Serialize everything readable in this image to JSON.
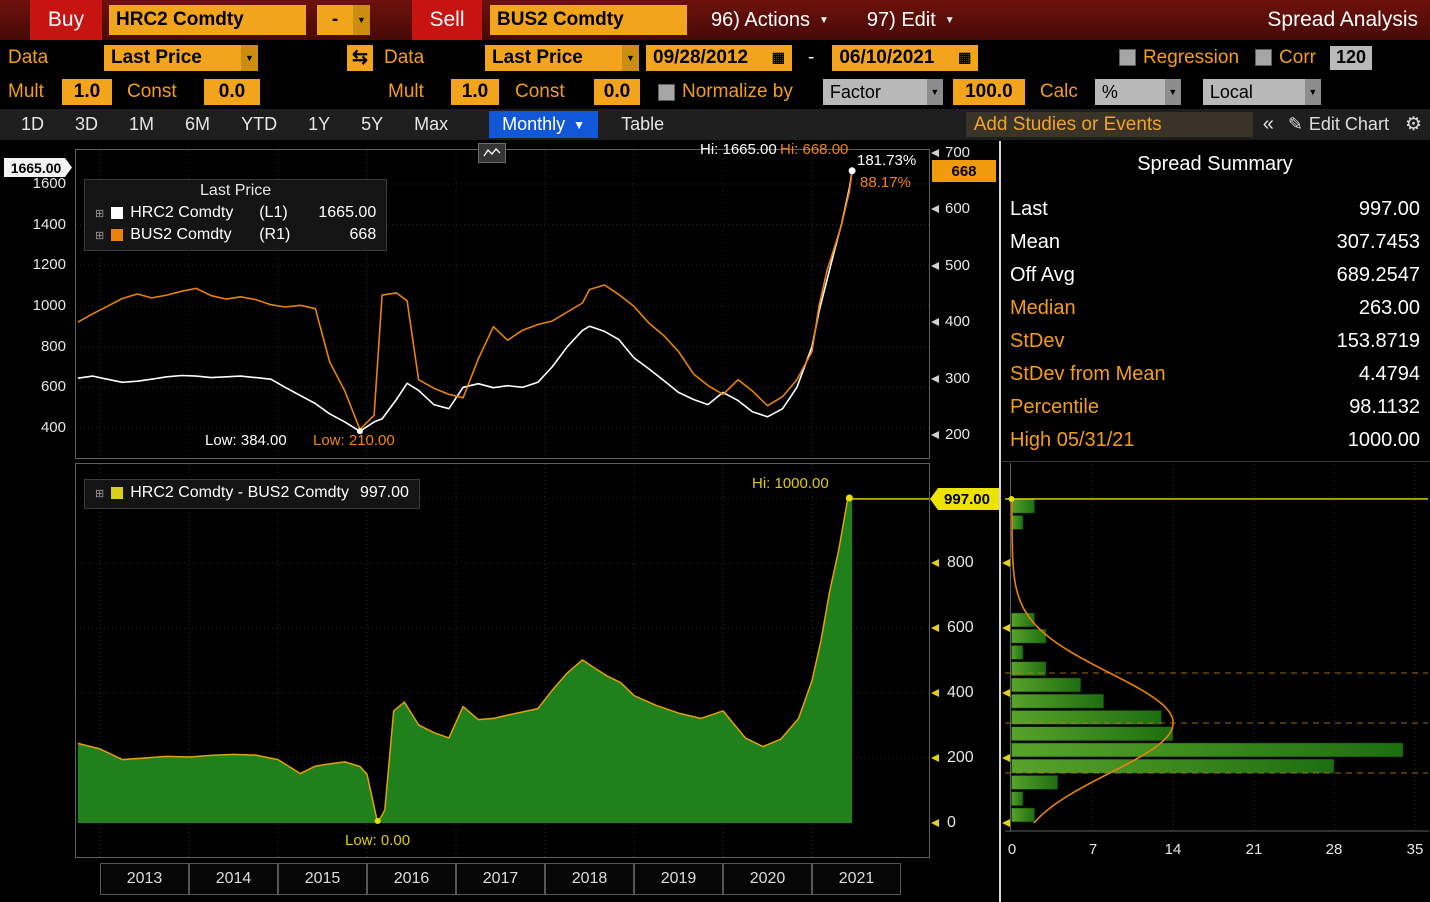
{
  "icons": {
    "chevron_down": "▼",
    "swap_arrows": "⇆",
    "calendar": "▦",
    "collapse": "«",
    "pencil": "✎",
    "gear": "⚙",
    "expand": "⊞"
  },
  "colors": {
    "amber_field": "#f2a51c",
    "amber_text": "#f59d18",
    "red_button": "#c81410",
    "blue_selected": "#1158d8",
    "white_series": "#ffffff",
    "orange_series": "#e8820c",
    "green_fill": "#1f801c",
    "area_outline": "#e2a00e",
    "yellow": "#e3d018",
    "legend_spread_swatch": "#d8cf1a"
  },
  "header": {
    "buy_label": "Buy",
    "buy_ticker": "HRC2 Comdty",
    "pair_separator": "-",
    "sell_label": "Sell",
    "sell_ticker": "BUS2 Comdty",
    "actions_label": "96) Actions",
    "edit_label": "97) Edit",
    "title": "Spread Analysis"
  },
  "controls": {
    "data1_label": "Data",
    "data1_value": "Last Price",
    "data2_label": "Data",
    "data2_value": "Last Price",
    "date_from": "09/28/2012",
    "date_separator": "-",
    "date_to": "06/10/2021",
    "regression_label": "Regression",
    "corr_label": "Corr",
    "corr_value": "120",
    "mult1_label": "Mult",
    "mult1_value": "1.0",
    "const1_label": "Const",
    "const1_value": "0.0",
    "mult2_label": "Mult",
    "mult2_value": "1.0",
    "const2_label": "Const",
    "const2_value": "0.0",
    "normalize_label": "Normalize by",
    "normalize_value": "Factor",
    "normalize_amount": "100.0",
    "calc_label": "Calc",
    "calc_value": "%",
    "currency_value": "Local"
  },
  "toolbar": {
    "ranges": [
      "1D",
      "3D",
      "1M",
      "6M",
      "YTD",
      "1Y",
      "5Y",
      "Max"
    ],
    "period_label": "Monthly",
    "table_label": "Table",
    "studies_placeholder": "Add Studies or Events",
    "edit_chart_label": "Edit Chart"
  },
  "top_chart": {
    "legend_title": "Last Price",
    "legend": [
      {
        "name": "HRC2 Comdty",
        "axis": "(L1)",
        "value": "1665.00",
        "color": "#ffffff"
      },
      {
        "name": "BUS2 Comdty",
        "axis": "(R1)",
        "value": "668",
        "color": "#e8820c"
      }
    ],
    "left_badge": "1665.00",
    "right_badge": "668",
    "left_ticks": [
      1600,
      1400,
      1200,
      1000,
      800,
      600,
      400
    ],
    "right_ticks": [
      700,
      600,
      500,
      400,
      300,
      200
    ],
    "hi_left": "Hi: 1665.00",
    "hi_right": "Hi: 668.00",
    "pct_left": "181.73%",
    "pct_right": "88.17%",
    "low_left": "Low: 384.00",
    "low_right": "Low: 210.00"
  },
  "summary": {
    "title": "Spread Summary",
    "rows": [
      {
        "label": "Last",
        "value": "997.00",
        "accent": false
      },
      {
        "label": "Mean",
        "value": "307.7453",
        "accent": false
      },
      {
        "label": "Off Avg",
        "value": "689.2547",
        "accent": false
      },
      {
        "label": "Median",
        "value": "263.00",
        "accent": true
      },
      {
        "label": "StDev",
        "value": "153.8719",
        "accent": true
      },
      {
        "label": "StDev from Mean",
        "value": "4.4794",
        "accent": true
      },
      {
        "label": "Percentile",
        "value": "98.1132",
        "accent": true
      },
      {
        "label": "High 05/31/21",
        "value": "1000.00",
        "accent": true
      }
    ]
  },
  "bottom_chart": {
    "legend_name": "HRC2 Comdty - BUS2 Comdty",
    "legend_value": "997.00",
    "badge": "997.00",
    "right_ticks": [
      800,
      600,
      400,
      200,
      0
    ],
    "hi_label": "Hi: 1000.00",
    "low_label": "Low: 0.00",
    "years": [
      "2013",
      "2014",
      "2015",
      "2016",
      "2017",
      "2018",
      "2019",
      "2020",
      "2021"
    ]
  },
  "histogram": {
    "x_ticks": [
      0,
      7,
      14,
      21,
      28,
      35
    ]
  },
  "chart_data": [
    {
      "type": "line",
      "title": "Last Price",
      "x_unit": "decimal_year",
      "xlim": [
        2012.7,
        2021.6
      ],
      "left_ylim": [
        360,
        1700
      ],
      "right_ylim": [
        190,
        710
      ],
      "x": [
        2012.75,
        2012.92,
        2013.08,
        2013.25,
        2013.42,
        2013.58,
        2013.75,
        2013.92,
        2014.08,
        2014.25,
        2014.42,
        2014.58,
        2014.75,
        2014.92,
        2015.08,
        2015.25,
        2015.42,
        2015.58,
        2015.75,
        2015.92,
        2016.08,
        2016.17,
        2016.33,
        2016.45,
        2016.58,
        2016.75,
        2016.92,
        2017.08,
        2017.25,
        2017.42,
        2017.58,
        2017.75,
        2017.92,
        2018.08,
        2018.25,
        2018.42,
        2018.5,
        2018.67,
        2018.83,
        2019.0,
        2019.17,
        2019.33,
        2019.5,
        2019.67,
        2019.83,
        2020.0,
        2020.17,
        2020.33,
        2020.5,
        2020.67,
        2020.83,
        2021.0,
        2021.08,
        2021.17,
        2021.25,
        2021.33,
        2021.42,
        2021.45
      ],
      "series": [
        {
          "name": "HRC2 Comdty (L1)",
          "axis": "left",
          "color": "#ffffff",
          "last": 1665.0,
          "hi": 1665.0,
          "low": 384.0,
          "pct_change": "181.73%",
          "y": [
            645,
            655,
            640,
            625,
            630,
            640,
            652,
            658,
            655,
            648,
            652,
            655,
            648,
            640,
            600,
            560,
            520,
            470,
            430,
            384,
            430,
            445,
            540,
            620,
            585,
            515,
            495,
            600,
            618,
            598,
            608,
            600,
            625,
            700,
            800,
            880,
            900,
            875,
            835,
            745,
            690,
            635,
            575,
            540,
            515,
            575,
            535,
            480,
            455,
            495,
            600,
            800,
            975,
            1130,
            1270,
            1400,
            1580,
            1665
          ]
        },
        {
          "name": "BUS2 Comdty (R1)",
          "axis": "right",
          "color": "#e8820c",
          "last": 668,
          "hi": 668.0,
          "low": 210.0,
          "pct_change": "88.17%",
          "y": [
            400,
            415,
            428,
            442,
            450,
            443,
            448,
            455,
            460,
            447,
            441,
            445,
            440,
            431,
            427,
            430,
            424,
            330,
            278,
            210,
            235,
            448,
            452,
            438,
            298,
            283,
            272,
            266,
            335,
            392,
            368,
            386,
            396,
            402,
            418,
            434,
            458,
            466,
            449,
            428,
            398,
            377,
            348,
            308,
            288,
            272,
            298,
            278,
            252,
            268,
            298,
            348,
            430,
            492,
            532,
            572,
            632,
            668
          ]
        }
      ]
    },
    {
      "type": "area",
      "title": "HRC2 Comdty - BUS2 Comdty",
      "x_unit": "decimal_year",
      "ylim": [
        0,
        1030
      ],
      "last": 997.0,
      "hi": 1000.0,
      "low": 0.0,
      "x": [
        2012.75,
        2013.0,
        2013.25,
        2013.5,
        2013.75,
        2014.0,
        2014.25,
        2014.5,
        2014.75,
        2015.0,
        2015.25,
        2015.42,
        2015.58,
        2015.75,
        2015.92,
        2016.0,
        2016.12,
        2016.2,
        2016.3,
        2016.42,
        2016.58,
        2016.75,
        2016.92,
        2017.08,
        2017.25,
        2017.42,
        2017.58,
        2017.75,
        2017.92,
        2018.08,
        2018.25,
        2018.42,
        2018.55,
        2018.7,
        2018.85,
        2019.0,
        2019.25,
        2019.5,
        2019.75,
        2020.0,
        2020.25,
        2020.45,
        2020.65,
        2020.85,
        2021.0,
        2021.1,
        2021.2,
        2021.3,
        2021.4,
        2021.42,
        2021.45
      ],
      "y": [
        245,
        228,
        195,
        200,
        205,
        203,
        208,
        211,
        209,
        195,
        152,
        175,
        182,
        188,
        174,
        150,
        0,
        40,
        345,
        372,
        302,
        278,
        262,
        358,
        318,
        322,
        332,
        342,
        352,
        408,
        462,
        502,
        478,
        452,
        432,
        392,
        362,
        338,
        322,
        345,
        262,
        235,
        258,
        322,
        438,
        560,
        715,
        840,
        995,
        1000,
        997
      ]
    },
    {
      "type": "histogram",
      "orientation": "horizontal",
      "value_axis": "spread",
      "bin_width": 50,
      "count_axis_max": 35,
      "bins": [
        {
          "from": 0,
          "count": 2
        },
        {
          "from": 50,
          "count": 1
        },
        {
          "from": 100,
          "count": 4
        },
        {
          "from": 150,
          "count": 28
        },
        {
          "from": 200,
          "count": 34
        },
        {
          "from": 250,
          "count": 14
        },
        {
          "from": 300,
          "count": 13
        },
        {
          "from": 350,
          "count": 8
        },
        {
          "from": 400,
          "count": 6
        },
        {
          "from": 450,
          "count": 3
        },
        {
          "from": 500,
          "count": 1
        },
        {
          "from": 550,
          "count": 3
        },
        {
          "from": 600,
          "count": 2
        },
        {
          "from": 900,
          "count": 1
        },
        {
          "from": 950,
          "count": 2
        }
      ],
      "fit": {
        "distribution": "normal",
        "mean": 307.7453,
        "stdev": 153.8719,
        "peak_count": 14
      }
    }
  ]
}
